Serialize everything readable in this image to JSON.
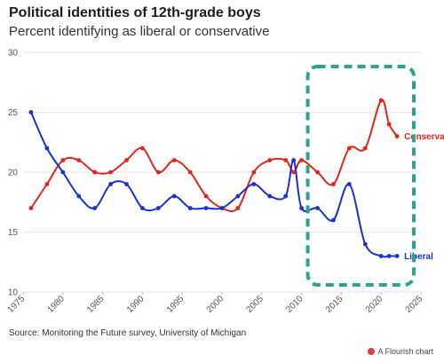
{
  "header": {
    "title": "Political identities of 12th-grade boys",
    "subtitle": "Percent identifying as liberal or conservative"
  },
  "footer": {
    "source": "Source: Monitoring the Future survey, University of Michigan",
    "brand": "A Flourish chart"
  },
  "colors": {
    "conservative": "#e3241b",
    "liberal": "#1a2fd9",
    "highlight_box": "#2aa48a",
    "grid": "#e6e6e6"
  },
  "chart_data": {
    "type": "line",
    "title": "Political identities of 12th-grade boys",
    "subtitle": "Percent identifying as liberal or conservative",
    "xlabel": "",
    "ylabel": "",
    "xlim": [
      1975,
      2025
    ],
    "ylim": [
      10,
      30
    ],
    "x_ticks": [
      "1975",
      "1980",
      "1985",
      "1990",
      "1995",
      "2000",
      "2005",
      "2010",
      "2015",
      "2020",
      "2025"
    ],
    "y_ticks": [
      "10",
      "15",
      "20",
      "25",
      "30"
    ],
    "grid": true,
    "legend": "direct labels at line ends",
    "highlight_region": {
      "x_range": [
        2011,
        2025
      ],
      "style": "dashed rounded box"
    },
    "series": [
      {
        "name": "Conservative",
        "color": "#e3241b",
        "points": [
          [
            1976,
            17
          ],
          [
            1978,
            19
          ],
          [
            1980,
            21
          ],
          [
            1982,
            21
          ],
          [
            1984,
            20
          ],
          [
            1986,
            20
          ],
          [
            1988,
            21
          ],
          [
            1990,
            22
          ],
          [
            1992,
            20
          ],
          [
            1994,
            21
          ],
          [
            1996,
            20
          ],
          [
            1998,
            18
          ],
          [
            2000,
            17
          ],
          [
            2002,
            17
          ],
          [
            2004,
            20
          ],
          [
            2006,
            21
          ],
          [
            2008,
            21
          ],
          [
            2009,
            20
          ],
          [
            2010,
            21
          ],
          [
            2012,
            20
          ],
          [
            2014,
            19
          ],
          [
            2016,
            22
          ],
          [
            2018,
            22
          ],
          [
            2020,
            26
          ],
          [
            2021,
            24
          ],
          [
            2022,
            23
          ]
        ]
      },
      {
        "name": "Liberal",
        "color": "#1a2fd9",
        "points": [
          [
            1976,
            25
          ],
          [
            1978,
            22
          ],
          [
            1980,
            20
          ],
          [
            1982,
            18
          ],
          [
            1984,
            17
          ],
          [
            1986,
            19
          ],
          [
            1988,
            19
          ],
          [
            1990,
            17
          ],
          [
            1992,
            17
          ],
          [
            1994,
            18
          ],
          [
            1996,
            17
          ],
          [
            1998,
            17
          ],
          [
            2000,
            17
          ],
          [
            2002,
            18
          ],
          [
            2004,
            19
          ],
          [
            2006,
            18
          ],
          [
            2008,
            18
          ],
          [
            2009,
            21
          ],
          [
            2010,
            17
          ],
          [
            2012,
            17
          ],
          [
            2014,
            16
          ],
          [
            2016,
            19
          ],
          [
            2018,
            14
          ],
          [
            2020,
            13
          ],
          [
            2021,
            13
          ],
          [
            2022,
            13
          ]
        ]
      }
    ]
  }
}
